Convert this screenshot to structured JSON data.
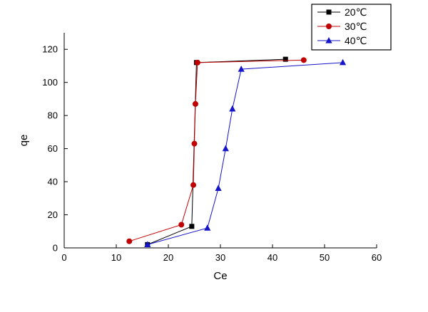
{
  "chart_data": {
    "type": "line",
    "title": "",
    "xlabel": "Ce",
    "ylabel": "qe",
    "xlim": [
      0,
      60
    ],
    "ylim": [
      0,
      130
    ],
    "xticks": [
      0,
      10,
      20,
      30,
      40,
      50,
      60
    ],
    "yticks": [
      0,
      20,
      40,
      60,
      80,
      100,
      120
    ],
    "grid": false,
    "legend_position": "top-right",
    "axis_color": "#000000",
    "series": [
      {
        "name": "20℃",
        "color": "#000000",
        "marker": "square",
        "points": [
          [
            16,
            2
          ],
          [
            24.5,
            13
          ],
          [
            25.4,
            112
          ],
          [
            42.5,
            114
          ]
        ]
      },
      {
        "name": "30℃",
        "color": "#c00000",
        "marker": "circle",
        "points": [
          [
            12.5,
            4
          ],
          [
            22.5,
            14
          ],
          [
            24.8,
            38
          ],
          [
            25.0,
            63
          ],
          [
            25.2,
            87
          ],
          [
            25.6,
            112
          ],
          [
            46,
            113.5
          ]
        ]
      },
      {
        "name": "40℃",
        "color": "#1414c8",
        "marker": "triangle",
        "points": [
          [
            16,
            2
          ],
          [
            27.5,
            12
          ],
          [
            29.6,
            36
          ],
          [
            31,
            60
          ],
          [
            32.3,
            84
          ],
          [
            34,
            108
          ],
          [
            53.5,
            112
          ]
        ]
      }
    ]
  }
}
